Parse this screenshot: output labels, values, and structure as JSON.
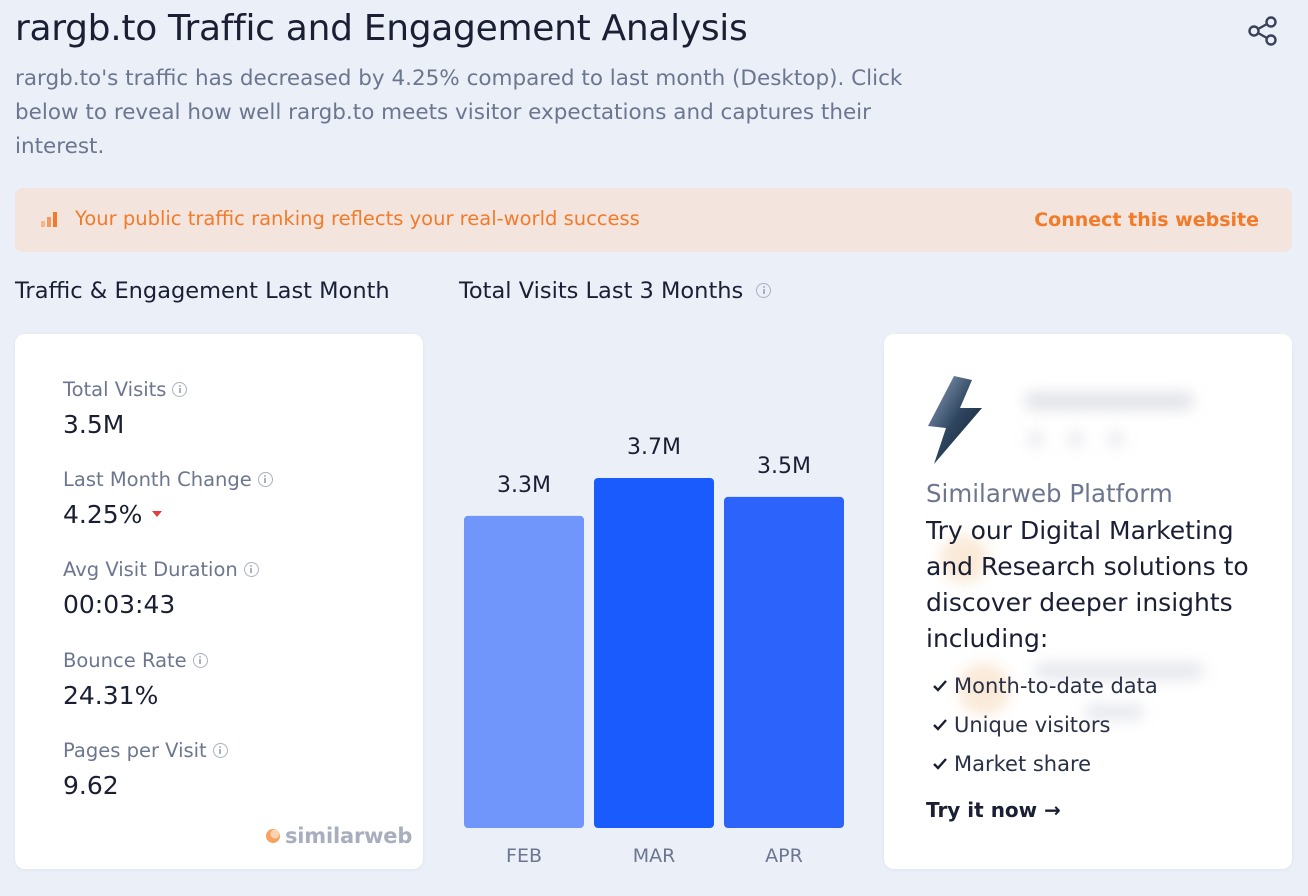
{
  "header": {
    "title": "rargb.to Traffic and Engagement Analysis",
    "subtitle": "rargb.to's traffic has decreased by 4.25% compared to last month (Desktop). Click below to reveal how well rargb.to meets visitor expectations and captures their interest.",
    "share_icon": "share-icon"
  },
  "banner": {
    "icon": "bar-chart-icon",
    "text": "Your public traffic ranking reflects your real-world success",
    "link": "Connect this website"
  },
  "sections": {
    "engagement_title": "Traffic & Engagement Last Month",
    "visits_title": "Total Visits Last 3 Months"
  },
  "metrics": [
    {
      "label": "Total Visits",
      "value": "3.5M"
    },
    {
      "label": "Last Month Change",
      "value": "4.25%",
      "trend": "down"
    },
    {
      "label": "Avg Visit Duration",
      "value": "00:03:43"
    },
    {
      "label": "Bounce Rate",
      "value": "24.31%"
    },
    {
      "label": "Pages per Visit",
      "value": "9.62"
    }
  ],
  "logo": "similarweb",
  "chart_data": {
    "type": "bar",
    "categories": [
      "FEB",
      "MAR",
      "APR"
    ],
    "values": [
      3.3,
      3.7,
      3.5
    ],
    "labels": [
      "3.3M",
      "3.7M",
      "3.5M"
    ],
    "unit": "M",
    "colors": [
      "#7096fb",
      "#1a5bfd",
      "#2b63fb"
    ]
  },
  "promo": {
    "brand": "Similarweb Platform",
    "body": "Try our Digital Marketing and Research solutions to discover deeper insights including:",
    "items": [
      "Month-to-date data",
      "Unique visitors",
      "Market share"
    ],
    "cta": "Try it now →"
  },
  "colors": {
    "accent_orange": "#f27b2a",
    "bar_blue": "#1a5bfd",
    "trend_down": "#e0413a"
  }
}
